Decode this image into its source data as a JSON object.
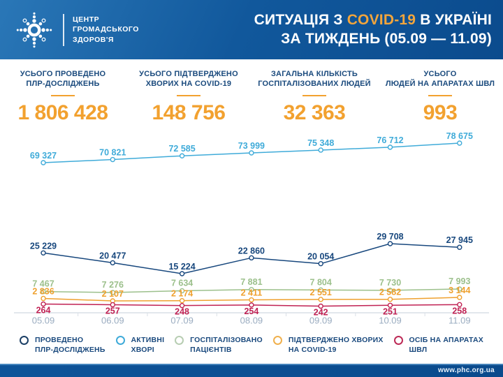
{
  "header": {
    "logo_line1": "ЦЕНТР",
    "logo_line2": "ГРОМАДСЬКОГО",
    "logo_line3": "ЗДОРОВ'Я",
    "title_line1_prefix": "СИТУАЦІЯ З ",
    "title_highlight": "COVID-19",
    "title_line1_suffix": " В УКРАЇНІ",
    "title_line2": "ЗА ТИЖДЕНЬ (05.09 — 11.09)"
  },
  "stats": [
    {
      "label_line1": "УСЬОГО ПРОВЕДЕНО",
      "label_line2": "ПЛР-ДОСЛІДЖЕНЬ",
      "value": "1 806 428"
    },
    {
      "label_line1": "УСЬОГО ПІДТВЕРДЖЕНО",
      "label_line2": "ХВОРИХ НА COVID-19",
      "value": "148 756"
    },
    {
      "label_line1": "ЗАГАЛЬНА КІЛЬКІСТЬ",
      "label_line2": "ГОСПІТАЛІЗОВАНИХ ЛЮДЕЙ",
      "value": "32 363"
    },
    {
      "label_line1": "УСЬОГО",
      "label_line2": "ЛЮДЕЙ НА АПАРАТАХ ШВЛ",
      "value": "993"
    }
  ],
  "chart_data": {
    "type": "line",
    "x": [
      "05.09",
      "06.09",
      "07.09",
      "08.09",
      "09.09",
      "10.09",
      "11.09"
    ],
    "series": [
      {
        "name": "ПРОВЕДЕНО ПЛР-ДОСЛІДЖЕНЬ",
        "color": "#17477d",
        "values": [
          25229,
          20477,
          15224,
          22860,
          20054,
          29708,
          27945
        ]
      },
      {
        "name": "АКТИВНІ ХВОРІ",
        "color": "#3fabd9",
        "values": [
          69327,
          70821,
          72585,
          73999,
          75348,
          76712,
          78675
        ]
      },
      {
        "name": "ГОСПІТАЛІЗОВАНО ПАЦІЄНТІВ",
        "color": "#9cc08c",
        "values": [
          7467,
          7276,
          7634,
          7881,
          7804,
          7730,
          7993
        ]
      },
      {
        "name": "ПІДТВЕРДЖЕНО ХВОРИХ НА COVID-19",
        "color": "#efa12f",
        "values": [
          2836,
          2107,
          2174,
          2411,
          2551,
          2582,
          3144
        ]
      },
      {
        "name": "ОСІБ НА АПАРАТАХ ШВЛ",
        "color": "#c02153",
        "values": [
          264,
          257,
          248,
          254,
          242,
          251,
          258
        ]
      }
    ],
    "title": "СИТУАЦІЯ З COVID-19 В УКРАЇНІ ЗА ТИЖДЕНЬ (05.09 — 11.09)",
    "xlabel": "",
    "ylabel": "",
    "grid": false,
    "legend_position": "bottom",
    "point_labels": true,
    "axis_color": "#d9dfe6",
    "tick_label_color": "#9aacc0"
  },
  "legend": [
    {
      "label_line1": "ПРОВЕДЕНО",
      "label_line2": "ПЛР-ДОСЛІДЖЕНЬ",
      "color": "#1b3f66"
    },
    {
      "label_line1": "АКТИВНІ",
      "label_line2": "ХВОРІ",
      "color": "#3fabd9"
    },
    {
      "label_line1": "ГОСПІТАЛІЗОВАНО",
      "label_line2": "ПАЦІЄНТІВ",
      "color": "#b7cdb2"
    },
    {
      "label_line1": "ПІДТВЕРДЖЕНО ХВОРИХ",
      "label_line2": "НА COVID-19",
      "color": "#f0b04d"
    },
    {
      "label_line1": "ОСІБ НА АПАРАТАХ",
      "label_line2": "ШВЛ",
      "color": "#bd2b57"
    }
  ],
  "footer": {
    "url": "www.phc.org.ua"
  }
}
